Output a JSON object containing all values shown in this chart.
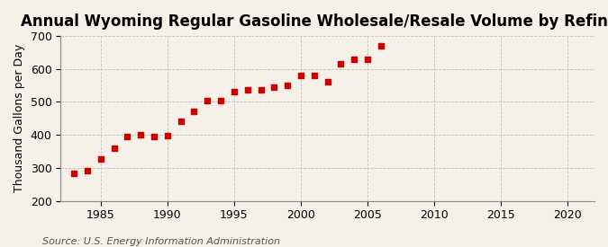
{
  "title": "Annual Wyoming Regular Gasoline Wholesale/Resale Volume by Refiners",
  "ylabel": "Thousand Gallons per Day",
  "source": "Source: U.S. Energy Information Administration",
  "background_color": "#f5f0e8",
  "years": [
    1983,
    1984,
    1985,
    1986,
    1987,
    1988,
    1989,
    1990,
    1991,
    1992,
    1993,
    1994,
    1995,
    1996,
    1997,
    1998,
    1999,
    2000,
    2001,
    2002,
    2003,
    2004,
    2005,
    2006
  ],
  "values": [
    282,
    291,
    328,
    360,
    394,
    400,
    395,
    398,
    440,
    470,
    505,
    505,
    530,
    537,
    537,
    545,
    550,
    580,
    580,
    562,
    617,
    630,
    630,
    670
  ],
  "xlim": [
    1982,
    2022
  ],
  "ylim": [
    200,
    700
  ],
  "xticks": [
    1985,
    1990,
    1995,
    2000,
    2005,
    2010,
    2015,
    2020
  ],
  "yticks": [
    200,
    300,
    400,
    500,
    600,
    700
  ],
  "marker_color": "#cc0000",
  "marker": "s",
  "marker_size": 25,
  "grid_color": "#bbbbbb",
  "title_fontsize": 12,
  "label_fontsize": 9,
  "tick_fontsize": 9,
  "source_fontsize": 8
}
